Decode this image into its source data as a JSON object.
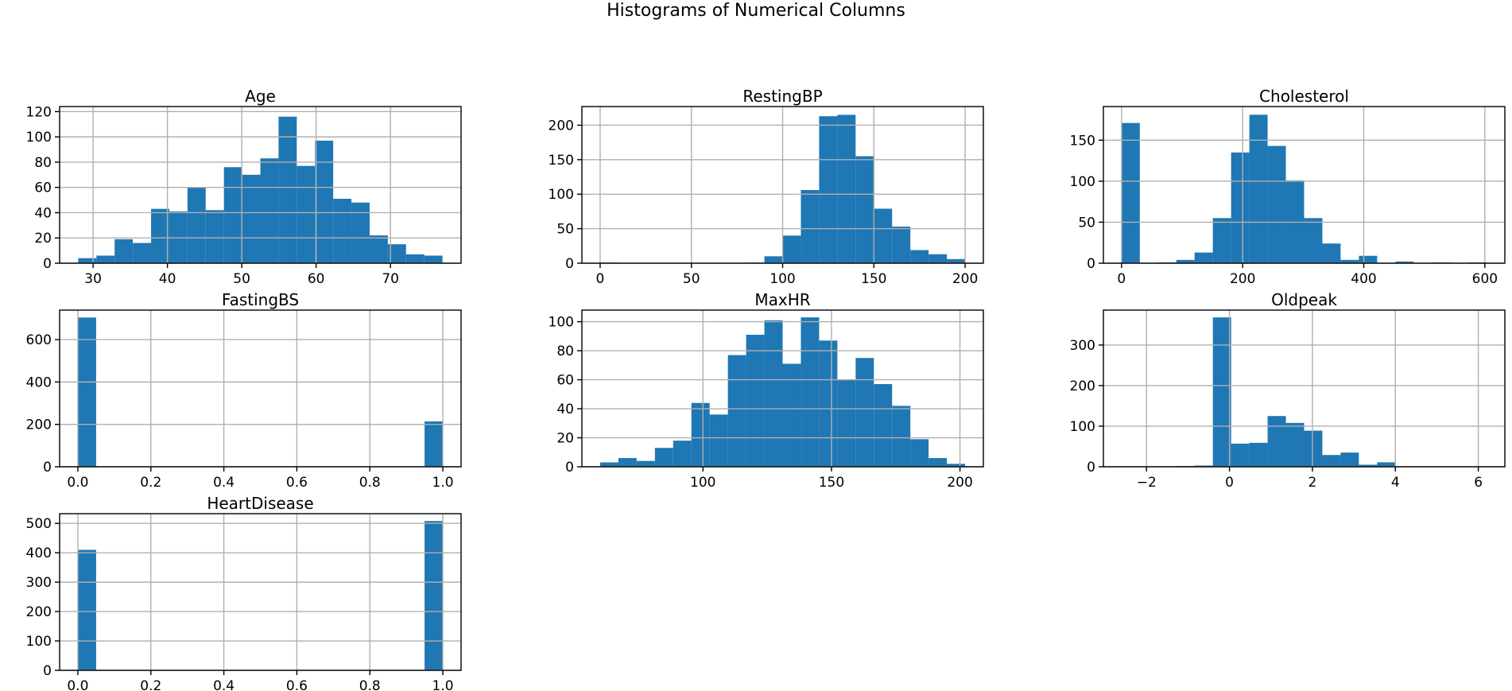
{
  "figure": {
    "title": "Histograms of Numerical Columns"
  },
  "colors": {
    "bar": "#1f77b4",
    "grid": "#b0b0b0",
    "axis": "#000000"
  },
  "chart_data": [
    {
      "type": "bar",
      "title": "Age",
      "bin_range": [
        28,
        77
      ],
      "values": [
        4,
        6,
        19,
        16,
        43,
        41,
        60,
        42,
        76,
        70,
        83,
        116,
        77,
        97,
        51,
        48,
        22,
        15,
        7,
        6
      ],
      "xlim": [
        25.5,
        79.5
      ],
      "ylim": [
        0,
        124
      ],
      "xticks": [
        30,
        40,
        50,
        60,
        70
      ],
      "xtick_labels": [
        "30",
        "40",
        "50",
        "60",
        "70"
      ],
      "yticks": [
        0,
        20,
        40,
        60,
        80,
        100,
        120
      ],
      "ytick_labels": [
        "0",
        "20",
        "40",
        "60",
        "80",
        "100",
        "120"
      ],
      "grid": true
    },
    {
      "type": "bar",
      "title": "RestingBP",
      "bin_range": [
        0,
        200
      ],
      "values": [
        1,
        0,
        0,
        0,
        0,
        0,
        0,
        0,
        1,
        10,
        40,
        106,
        213,
        215,
        155,
        79,
        53,
        19,
        13,
        6
      ],
      "xlim": [
        -10,
        210
      ],
      "ylim": [
        0,
        227
      ],
      "xticks": [
        0,
        50,
        100,
        150,
        200
      ],
      "xtick_labels": [
        "0",
        "50",
        "100",
        "150",
        "200"
      ],
      "yticks": [
        0,
        50,
        100,
        150,
        200
      ],
      "ytick_labels": [
        "0",
        "50",
        "100",
        "150",
        "200"
      ],
      "grid": true
    },
    {
      "type": "bar",
      "title": "Cholesterol",
      "bin_range": [
        0,
        603
      ],
      "values": [
        171,
        0,
        1,
        4,
        13,
        55,
        135,
        181,
        143,
        101,
        55,
        24,
        4,
        9,
        0,
        2,
        0,
        1,
        0,
        1
      ],
      "xlim": [
        -30,
        633
      ],
      "ylim": [
        0,
        191
      ],
      "xticks": [
        0,
        200,
        400,
        600
      ],
      "xtick_labels": [
        "0",
        "200",
        "400",
        "600"
      ],
      "yticks": [
        0,
        50,
        100,
        150
      ],
      "ytick_labels": [
        "0",
        "50",
        "100",
        "150"
      ],
      "grid": true
    },
    {
      "type": "bar",
      "title": "FastingBS",
      "bin_range": [
        0,
        1
      ],
      "values": [
        704,
        0,
        0,
        0,
        0,
        0,
        0,
        0,
        0,
        0,
        0,
        0,
        0,
        0,
        0,
        0,
        0,
        0,
        0,
        214
      ],
      "xlim": [
        -0.05,
        1.05
      ],
      "ylim": [
        0,
        739
      ],
      "xticks": [
        0,
        0.2,
        0.4,
        0.6,
        0.8,
        1.0
      ],
      "xtick_labels": [
        "0.0",
        "0.2",
        "0.4",
        "0.6",
        "0.8",
        "1.0"
      ],
      "yticks": [
        0,
        200,
        400,
        600
      ],
      "ytick_labels": [
        "0",
        "200",
        "400",
        "600"
      ],
      "grid": true
    },
    {
      "type": "bar",
      "title": "MaxHR",
      "bin_range": [
        60,
        202
      ],
      "values": [
        3,
        6,
        4,
        13,
        18,
        44,
        36,
        77,
        91,
        101,
        71,
        103,
        87,
        60,
        75,
        57,
        42,
        19,
        6,
        2
      ],
      "xlim": [
        52.9,
        209.1
      ],
      "ylim": [
        0,
        108
      ],
      "xticks": [
        100,
        150,
        200
      ],
      "xtick_labels": [
        "100",
        "150",
        "200"
      ],
      "yticks": [
        0,
        20,
        40,
        60,
        80,
        100
      ],
      "ytick_labels": [
        "0",
        "20",
        "40",
        "60",
        "80",
        "100"
      ],
      "grid": true
    },
    {
      "type": "bar",
      "title": "Oldpeak",
      "bin_range": [
        -2.6,
        6.2
      ],
      "values": [
        1,
        0,
        0,
        2,
        3,
        368,
        57,
        59,
        125,
        108,
        89,
        29,
        35,
        5,
        11,
        0,
        0,
        0,
        0,
        1
      ],
      "xlim": [
        -3.04,
        6.64
      ],
      "ylim": [
        0,
        386
      ],
      "xticks": [
        -2,
        0,
        2,
        4,
        6
      ],
      "xtick_labels": [
        "−2",
        "0",
        "2",
        "4",
        "6"
      ],
      "yticks": [
        0,
        100,
        200,
        300
      ],
      "ytick_labels": [
        "0",
        "100",
        "200",
        "300"
      ],
      "grid": true
    },
    {
      "type": "bar",
      "title": "HeartDisease",
      "bin_range": [
        0,
        1
      ],
      "values": [
        410,
        0,
        0,
        0,
        0,
        0,
        0,
        0,
        0,
        0,
        0,
        0,
        0,
        0,
        0,
        0,
        0,
        0,
        0,
        508
      ],
      "xlim": [
        -0.05,
        1.05
      ],
      "ylim": [
        0,
        533
      ],
      "xticks": [
        0,
        0.2,
        0.4,
        0.6,
        0.8,
        1.0
      ],
      "xtick_labels": [
        "0.0",
        "0.2",
        "0.4",
        "0.6",
        "0.8",
        "1.0"
      ],
      "yticks": [
        0,
        100,
        200,
        300,
        400,
        500
      ],
      "ytick_labels": [
        "0",
        "100",
        "200",
        "300",
        "400",
        "500"
      ],
      "grid": true
    }
  ]
}
